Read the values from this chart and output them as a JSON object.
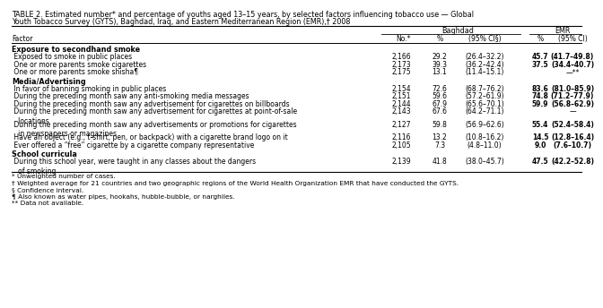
{
  "title_line1": "TABLE 2. Estimated number* and percentage of youths aged 13–15 years, by selected factors influencing tobacco use — Global",
  "title_line2": "Youth Tobacco Survey (GYTS), Baghdad, Iraq, and Eastern Mediterranean Region (EMR),† 2008",
  "baghdad_header": "Baghdad",
  "emr_header": "EMR",
  "sections": [
    {
      "header": "Exposure to secondhand smoke",
      "rows": [
        {
          "factor": " Exposed to smoke in public places",
          "no": "2,166",
          "b_pct": "29.2",
          "b_ci": "(26.4–32.2)",
          "e_pct": "45.7",
          "e_ci": "(41.7–49.8)",
          "e_bold": true
        },
        {
          "factor": " One or more parents smoke cigarettes",
          "no": "2,173",
          "b_pct": "39.3",
          "b_ci": "(36.2–42.4)",
          "e_pct": "37.5",
          "e_ci": "(34.4–40.7)",
          "e_bold": true
        },
        {
          "factor": " One or more parents smoke shisha¶",
          "no": "2,175",
          "b_pct": "13.1",
          "b_ci": "(11.4–15.1)",
          "e_pct": "",
          "e_ci": "—**",
          "e_bold": false
        }
      ]
    },
    {
      "header": "Media/Advertising",
      "rows": [
        {
          "factor": " In favor of banning smoking in public places",
          "no": "2,154",
          "b_pct": "72.6",
          "b_ci": "(68.7–76.2)",
          "e_pct": "83.6",
          "e_ci": "(81.0–85.9)",
          "e_bold": true
        },
        {
          "factor": " During the preceding month saw any anti-smoking media messages",
          "no": "2,151",
          "b_pct": "59.6",
          "b_ci": "(57.2–61.9)",
          "e_pct": "74.8",
          "e_ci": "(71.2–77.9)",
          "e_bold": true
        },
        {
          "factor": " During the preceding month saw any advertisement for cigarettes on billboards",
          "no": "2,144",
          "b_pct": "67.9",
          "b_ci": "(65.6–70.1)",
          "e_pct": "59.9",
          "e_ci": "(56.8–62.9)",
          "e_bold": true
        },
        {
          "factor": " During the preceding month saw any advertisement for cigarettes at point-of-sale\n   locations",
          "no": "2,143",
          "b_pct": "67.6",
          "b_ci": "(64.2–71.1)",
          "e_pct": "",
          "e_ci": "—",
          "e_bold": false
        },
        {
          "factor": " During the preceding month saw any advertisements or promotions for cigarettes\n   in newspapers or magazines",
          "no": "2,127",
          "b_pct": "59.8",
          "b_ci": "(56.9–62.6)",
          "e_pct": "55.4",
          "e_ci": "(52.4–58.4)",
          "e_bold": true
        },
        {
          "factor": " Have an object (e.g., t-shirt, pen, or backpack) with a cigarette brand logo on it",
          "no": "2,116",
          "b_pct": "13.2",
          "b_ci": "(10.8–16.2)",
          "e_pct": "14.5",
          "e_ci": "(12.8–16.4)",
          "e_bold": true
        },
        {
          "factor": " Ever offered a “free” cigarette by a cigarette company representative",
          "no": "2,105",
          "b_pct": "7.3",
          "b_ci": "(4.8–11.0)",
          "e_pct": "9.0",
          "e_ci": "(7.6–10.7)",
          "e_bold": true
        }
      ]
    },
    {
      "header": "School curricula",
      "rows": [
        {
          "factor": " During this school year, were taught in any classes about the dangers\n   of smoking",
          "no": "2,139",
          "b_pct": "41.8",
          "b_ci": "(38.0–45.7)",
          "e_pct": "47.5",
          "e_ci": "(42.2–52.8)",
          "e_bold": true
        }
      ]
    }
  ],
  "footnotes": [
    "* Unweighted number of cases.",
    "† Weighted average for 21 countries and two geographic regions of the World Health Organization EMR that have conducted the GYTS.",
    "§ Confidence interval.",
    "¶ Also known as water pipes, hookahs, hubble-bubble, or narghiles.",
    "** Data not available."
  ]
}
